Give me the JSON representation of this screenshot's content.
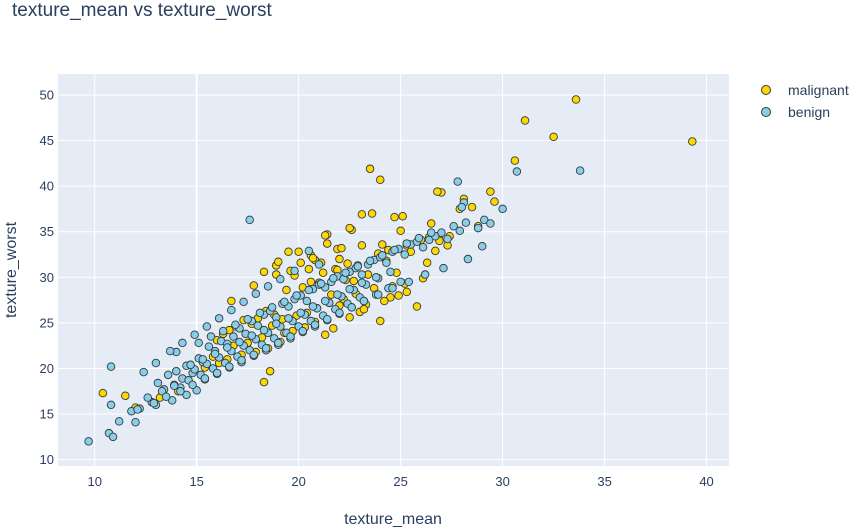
{
  "chart_data": {
    "type": "scatter",
    "title": "texture_mean vs texture_worst",
    "xlabel": "texture_mean",
    "ylabel": "texture_worst",
    "xlim": [
      8.2,
      41.1
    ],
    "ylim": [
      9.3,
      52.3
    ],
    "xticks": [
      10,
      15,
      20,
      25,
      30,
      35,
      40
    ],
    "yticks": [
      10,
      15,
      20,
      25,
      30,
      35,
      40,
      45,
      50
    ],
    "grid": true,
    "legend_position": "top-right",
    "series": [
      {
        "name": "malignant",
        "color": "#FFD700",
        "x": [
          33.6,
          39.3,
          31.1,
          32.5,
          30.6,
          23.5,
          24.0,
          29.4,
          28.1,
          27.9,
          27.0,
          26.8,
          28.5,
          29.6,
          26.5,
          24.7,
          23.6,
          22.6,
          21.9,
          24.1,
          25.0,
          25.3,
          26.0,
          26.7,
          26.9,
          23.1,
          22.1,
          21.4,
          20.8,
          21.8,
          22.4,
          23.9,
          24.3,
          25.5,
          24.8,
          26.3,
          25.2,
          23.4,
          22.9,
          22.3,
          21.2,
          20.6,
          19.8,
          19.4,
          20.2,
          21.0,
          21.6,
          22.2,
          22.8,
          23.3,
          24.5,
          24.9,
          25.8,
          24.0,
          23.0,
          22.0,
          21.5,
          20.9,
          20.4,
          19.9,
          19.2,
          18.8,
          18.4,
          18.0,
          17.7,
          17.3,
          16.9,
          16.6,
          16.3,
          16.0,
          16.8,
          17.5,
          18.2,
          18.7,
          19.3,
          19.7,
          20.3,
          20.8,
          21.3,
          21.7,
          22.5,
          23.2,
          24.2,
          25.3,
          19.1,
          18.5,
          17.9,
          17.2,
          16.5,
          16.1,
          15.8,
          15.4,
          20.0,
          20.6,
          21.1,
          21.9,
          22.7,
          23.7,
          24.6,
          26.1,
          27.3,
          22.0,
          21.4,
          20.7,
          19.5,
          18.9,
          18.3,
          19.6,
          20.5,
          18.3,
          12.0,
          10.4,
          11.5,
          13.2,
          14.1,
          18.6,
          26.9,
          27.4,
          28.8,
          23.1,
          22.5,
          21.3,
          20.1,
          19.0,
          17.8,
          18.9,
          16.7,
          24.4,
          25.1,
          26.4
        ],
        "y": [
          49.5,
          44.9,
          47.2,
          45.4,
          42.8,
          41.9,
          40.7,
          39.4,
          38.6,
          37.5,
          39.3,
          39.4,
          37.7,
          38.3,
          35.9,
          36.6,
          37.0,
          35.2,
          33.1,
          33.6,
          35.1,
          33.5,
          34.1,
          32.9,
          34.6,
          33.5,
          33.2,
          34.7,
          31.9,
          30.9,
          31.5,
          32.6,
          31.8,
          32.8,
          30.5,
          31.6,
          29.3,
          30.3,
          31.3,
          29.7,
          30.5,
          29.5,
          30.2,
          28.6,
          28.9,
          29.4,
          28.1,
          27.6,
          28.2,
          27.0,
          27.8,
          28.0,
          26.8,
          25.2,
          26.2,
          26.9,
          27.2,
          26.6,
          26.1,
          25.8,
          25.4,
          25.9,
          26.3,
          25.5,
          24.9,
          25.3,
          24.6,
          24.2,
          23.8,
          23.1,
          22.5,
          22.8,
          23.4,
          24.7,
          23.9,
          24.1,
          24.5,
          25.1,
          23.7,
          24.4,
          25.6,
          26.5,
          27.4,
          28.4,
          22.9,
          22.2,
          21.8,
          21.5,
          21.0,
          20.6,
          21.3,
          20.1,
          32.8,
          32.4,
          31.6,
          30.8,
          29.6,
          28.8,
          29.0,
          29.9,
          33.5,
          32.0,
          33.7,
          32.1,
          32.8,
          31.3,
          30.6,
          30.7,
          30.9,
          18.5,
          15.7,
          17.3,
          17.0,
          16.8,
          17.5,
          19.7,
          34.0,
          34.5,
          35.6,
          36.9,
          35.4,
          34.6,
          31.6,
          31.7,
          29.1,
          30.3,
          27.4,
          33.0,
          36.7,
          34.4
        ]
      },
      {
        "name": "benign",
        "color": "#87CEEB",
        "x": [
          9.7,
          10.7,
          10.9,
          10.8,
          11.2,
          10.8,
          11.8,
          12.0,
          12.2,
          12.8,
          12.4,
          13.1,
          13.4,
          13.0,
          13.6,
          13.9,
          14.2,
          14.5,
          14.0,
          14.8,
          15.1,
          15.3,
          15.6,
          15.9,
          16.2,
          16.5,
          16.8,
          17.1,
          17.4,
          17.7,
          18.0,
          18.3,
          18.6,
          18.9,
          19.2,
          19.5,
          19.8,
          20.1,
          20.4,
          20.7,
          21.0,
          21.3,
          21.6,
          21.9,
          22.2,
          22.5,
          22.8,
          23.1,
          23.4,
          23.7,
          24.0,
          24.3,
          24.6,
          24.9,
          25.2,
          25.5,
          25.8,
          26.1,
          26.4,
          26.7,
          27.0,
          27.3,
          27.6,
          27.9,
          28.2,
          28.8,
          29.1,
          29.4,
          30.7,
          30.0,
          33.8,
          27.8,
          28.1,
          28.0,
          17.6,
          14.5,
          13.0,
          13.8,
          15.0,
          15.4,
          16.0,
          16.6,
          17.2,
          17.8,
          18.4,
          19.0,
          19.6,
          20.2,
          20.8,
          21.4,
          22.0,
          22.6,
          23.2,
          23.8,
          24.4,
          25.0,
          14.3,
          14.9,
          15.5,
          16.1,
          16.7,
          17.3,
          17.9,
          18.5,
          19.1,
          19.7,
          20.3,
          20.9,
          21.5,
          22.1,
          22.7,
          23.3,
          23.9,
          24.5,
          12.6,
          13.3,
          13.9,
          14.6,
          15.2,
          15.8,
          16.4,
          17.0,
          17.6,
          18.2,
          18.8,
          19.4,
          20.0,
          20.6,
          21.2,
          21.8,
          22.4,
          23.0,
          15.1,
          15.7,
          16.3,
          16.9,
          17.5,
          18.1,
          18.7,
          19.3,
          19.9,
          20.5,
          21.1,
          21.7,
          22.3,
          22.9,
          23.5,
          24.1,
          24.7,
          25.3,
          25.9,
          26.5,
          14.0,
          14.7,
          15.3,
          15.9,
          16.5,
          17.1,
          17.7,
          18.3,
          18.9,
          19.5,
          20.1,
          20.7,
          21.3,
          21.9,
          22.5,
          23.1,
          23.8,
          12.1,
          12.9,
          13.5,
          14.2,
          14.8,
          15.4,
          16.0,
          16.6,
          17.2,
          17.8,
          18.4,
          19.0,
          19.6,
          20.2,
          20.8,
          21.4,
          22.0,
          22.6,
          23.2,
          23.9,
          24.6,
          25.4,
          26.2,
          27.1,
          28.3,
          29.0,
          20.5,
          21.0,
          19.8,
          19.1,
          18.5,
          17.9,
          17.3,
          16.7,
          16.1,
          15.5,
          14.9,
          14.3,
          13.7
        ],
        "y": [
          12.0,
          12.9,
          12.5,
          16.0,
          14.2,
          20.2,
          15.3,
          14.1,
          15.6,
          16.3,
          19.6,
          18.4,
          17.7,
          20.6,
          19.3,
          18.2,
          17.9,
          20.3,
          21.8,
          19.5,
          21.1,
          20.7,
          22.4,
          21.9,
          23.0,
          22.7,
          23.5,
          24.4,
          23.8,
          25.2,
          24.7,
          25.9,
          26.3,
          25.6,
          27.1,
          26.8,
          27.6,
          28.0,
          27.4,
          28.7,
          29.2,
          28.9,
          29.5,
          30.1,
          29.8,
          30.6,
          31.0,
          30.3,
          31.4,
          31.9,
          32.2,
          31.6,
          32.8,
          33.1,
          32.5,
          33.6,
          33.9,
          33.3,
          34.1,
          34.5,
          34.9,
          34.2,
          35.6,
          35.1,
          36.0,
          35.4,
          36.3,
          35.9,
          41.6,
          37.5,
          41.7,
          40.5,
          38.2,
          37.7,
          36.3,
          17.1,
          16.0,
          16.5,
          17.6,
          18.8,
          19.4,
          20.1,
          20.7,
          21.4,
          22.0,
          22.6,
          23.3,
          24.0,
          24.6,
          25.3,
          26.0,
          26.7,
          27.4,
          28.1,
          28.8,
          29.5,
          18.9,
          19.9,
          20.5,
          21.2,
          21.9,
          22.5,
          23.2,
          23.9,
          24.6,
          25.2,
          25.9,
          26.6,
          27.2,
          27.9,
          28.6,
          29.2,
          29.9,
          30.6,
          16.8,
          17.5,
          18.1,
          18.7,
          19.3,
          20.0,
          20.6,
          21.3,
          22.0,
          22.6,
          23.3,
          23.9,
          24.6,
          25.2,
          25.8,
          26.5,
          27.1,
          27.8,
          22.8,
          23.5,
          24.1,
          24.8,
          25.4,
          26.1,
          26.7,
          27.3,
          28.0,
          28.6,
          29.3,
          29.9,
          30.5,
          31.2,
          31.8,
          32.4,
          33.0,
          33.7,
          34.3,
          34.9,
          19.7,
          20.4,
          21.0,
          21.6,
          22.3,
          22.9,
          23.6,
          24.2,
          24.9,
          25.5,
          26.1,
          26.8,
          27.4,
          28.1,
          28.7,
          29.4,
          30.0,
          15.5,
          16.2,
          16.9,
          17.5,
          18.2,
          18.9,
          19.5,
          20.2,
          20.9,
          21.5,
          22.2,
          22.8,
          23.5,
          24.1,
          24.8,
          25.4,
          26.1,
          26.7,
          27.4,
          28.1,
          28.8,
          29.5,
          30.3,
          31.0,
          32.0,
          33.4,
          32.9,
          31.4,
          30.7,
          29.8,
          29.0,
          28.2,
          27.3,
          26.4,
          25.5,
          24.6,
          23.7,
          22.8,
          21.9
        ]
      }
    ]
  }
}
